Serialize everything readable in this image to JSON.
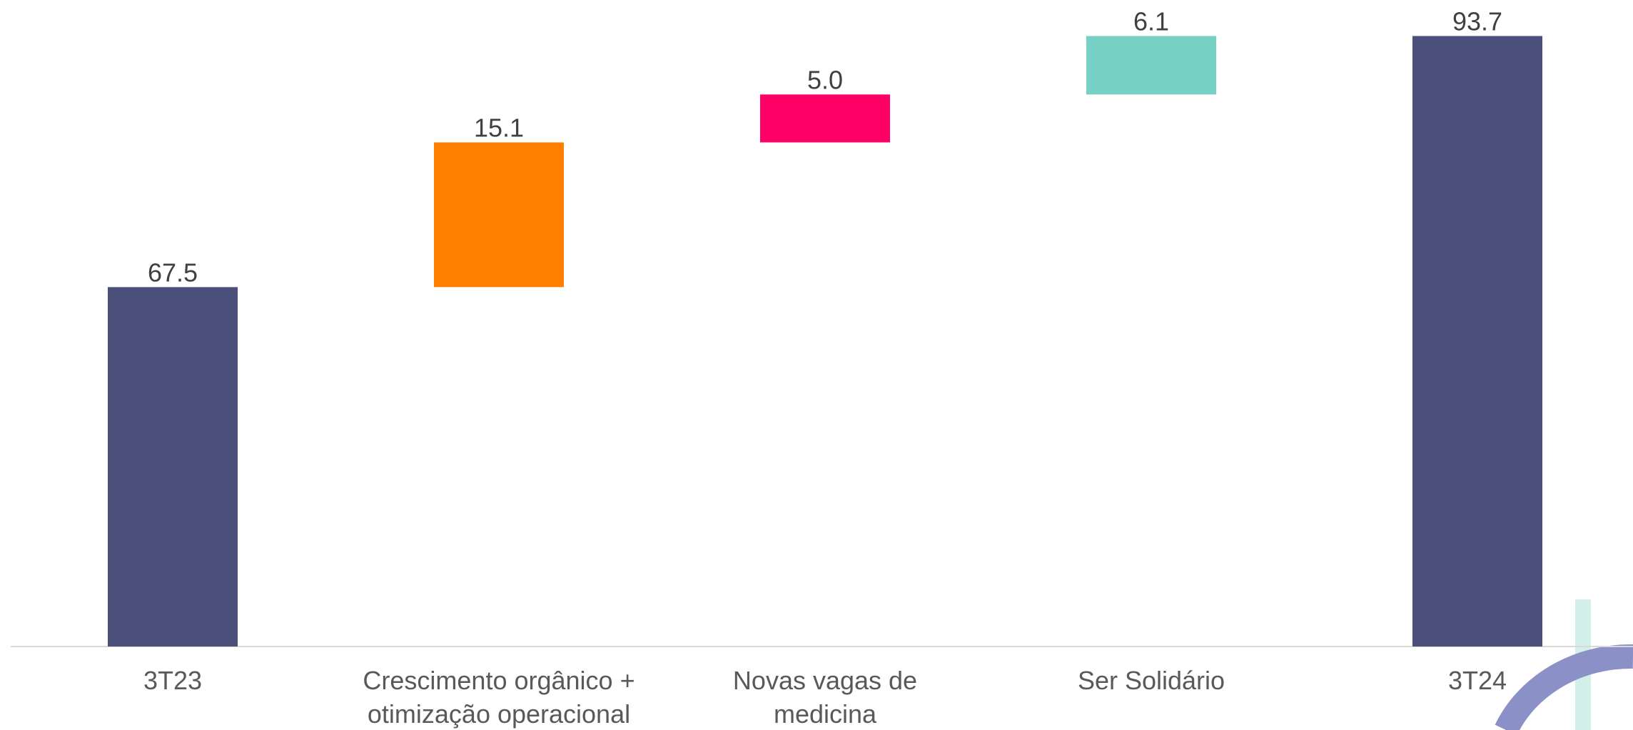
{
  "chart_data": {
    "type": "waterfall",
    "categories": [
      [
        "3T23"
      ],
      [
        "Crescimento orgânico +",
        "otimização operacional"
      ],
      [
        "Novas vagas de",
        "medicina"
      ],
      [
        "Ser Solidário"
      ],
      [
        "3T24"
      ]
    ],
    "values": [
      67.5,
      15.1,
      5.0,
      6.1,
      93.7
    ],
    "value_labels": [
      "67.5",
      "15.1",
      "5.0",
      "6.1",
      "93.7"
    ],
    "measures": [
      "absolute",
      "relative",
      "relative",
      "relative",
      "total"
    ],
    "colors": [
      "#4b507a",
      "#ff8000",
      "#ff0066",
      "#76d0c4",
      "#4b507a"
    ],
    "ylim": [
      30,
      95
    ]
  }
}
